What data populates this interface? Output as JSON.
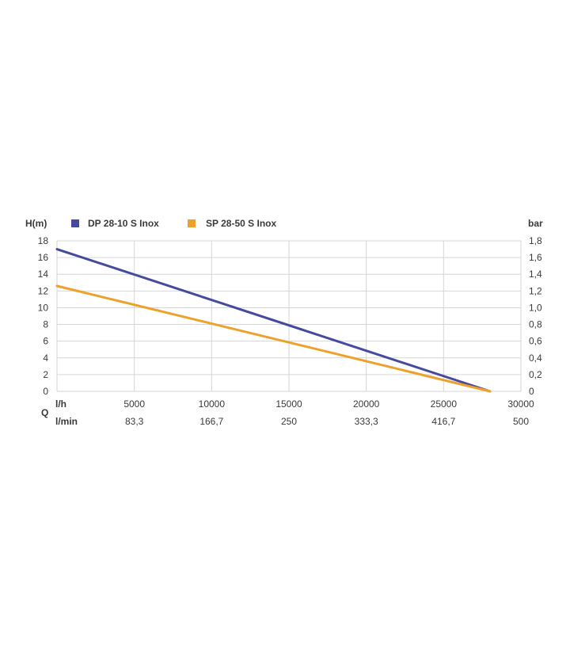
{
  "chart_data": {
    "type": "line",
    "title": "",
    "ylabel_left": "H(m)",
    "ylabel_right": "bar",
    "xlabel": "Q",
    "x_unit_primary": "l/h",
    "x_unit_secondary": "l/min",
    "xlim": [
      0,
      30000
    ],
    "ylim": [
      0,
      18
    ],
    "grid": true,
    "legend_position": "top",
    "y_ticks_left": [
      "0",
      "2",
      "4",
      "6",
      "8",
      "10",
      "12",
      "14",
      "16",
      "18"
    ],
    "y_ticks_right": [
      "0",
      "0,2",
      "0,4",
      "0,6",
      "0,8",
      "1,0",
      "1,2",
      "1,4",
      "1,6",
      "1,8"
    ],
    "x_ticks_primary": [
      "5000",
      "10000",
      "15000",
      "20000",
      "25000",
      "30000"
    ],
    "x_ticks_secondary": [
      "83,3",
      "166,7",
      "250",
      "333,3",
      "416,7",
      "500"
    ],
    "series": [
      {
        "name": "DP 28-10 S Inox",
        "color": "#454a9e",
        "x": [
          0,
          28000
        ],
        "y": [
          17,
          0
        ]
      },
      {
        "name": "SP 28-50 S Inox",
        "color": "#eda12b",
        "x": [
          0,
          28000
        ],
        "y": [
          12.6,
          0
        ]
      }
    ]
  }
}
